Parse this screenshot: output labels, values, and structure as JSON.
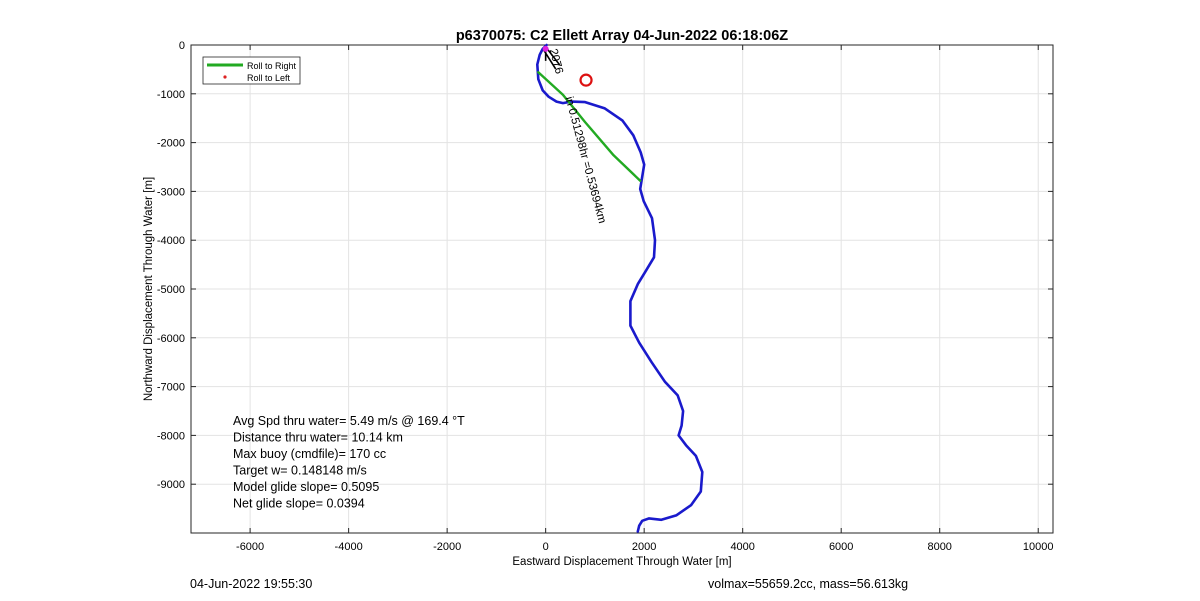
{
  "chart_data": {
    "type": "line",
    "title": "p6370075: C2 Ellett Array 04-Jun-2022 06:18:06Z",
    "xlabel": "Eastward Displacement Through Water [m]",
    "ylabel": "Northward Displacement Through Water [m]",
    "xlim": [
      -7200,
      10300
    ],
    "ylim": [
      -10000,
      0
    ],
    "xticks": [
      -6000,
      -4000,
      -2000,
      0,
      2000,
      4000,
      6000,
      8000,
      10000
    ],
    "yticks": [
      0,
      -1000,
      -2000,
      -3000,
      -4000,
      -5000,
      -6000,
      -7000,
      -8000,
      -9000
    ],
    "xtick_labels": [
      "-6000",
      "-4000",
      "-2000",
      "0",
      "2000",
      "4000",
      "6000",
      "8000",
      "10000"
    ],
    "ytick_labels": [
      "0",
      "-1000",
      "-2000",
      "-3000",
      "-4000",
      "-5000",
      "-6000",
      "-7000",
      "-8000",
      "-9000"
    ],
    "grid": true,
    "legend": {
      "placement": "top-left",
      "entries": [
        {
          "label": "Roll to Right",
          "color": "#22aa22",
          "style": "line"
        },
        {
          "label": "Roll to Left",
          "color": "#dd2222",
          "style": "dot"
        }
      ]
    },
    "series": [
      {
        "color": "#1a1acc",
        "x": [
          1870,
          1900,
          1960,
          2100,
          2350,
          2650,
          2950,
          3150,
          3180,
          3050,
          2850,
          2700,
          2760,
          2790,
          2680,
          2420,
          2150,
          1900,
          1720,
          1720,
          1870,
          2020,
          2200,
          2220,
          2160,
          1990,
          1920,
          1960,
          2000,
          1930,
          1780,
          1560,
          1200,
          800,
          520,
          350,
          220,
          60,
          -60,
          -150,
          -170,
          -120,
          -60,
          20
        ],
        "y": [
          -9970,
          -9850,
          -9750,
          -9700,
          -9730,
          -9640,
          -9430,
          -9150,
          -8750,
          -8420,
          -8200,
          -8000,
          -7800,
          -7500,
          -7180,
          -6900,
          -6500,
          -6100,
          -5750,
          -5250,
          -4900,
          -4650,
          -4350,
          -4000,
          -3550,
          -3200,
          -2950,
          -2700,
          -2450,
          -2200,
          -1850,
          -1550,
          -1300,
          -1170,
          -1160,
          -1190,
          -1160,
          -1060,
          -930,
          -700,
          -400,
          -200,
          -80,
          0
        ]
      },
      {
        "color": "#22aa22",
        "x": [
          -150,
          350,
          800,
          1380,
          1920
        ],
        "y": [
          -560,
          -1020,
          -1580,
          -2260,
          -2780
        ]
      }
    ],
    "markers": [
      {
        "type": "red-circle",
        "x": 820,
        "y": -720
      },
      {
        "type": "magenta-dot",
        "x": 0,
        "y": -80
      }
    ],
    "annotations": [
      {
        "text": "2076",
        "x": 80,
        "y": -100,
        "rotation": 75
      },
      {
        "text": "in 0.51298hr =0.53694km",
        "x": 400,
        "y": -1080,
        "rotation": 75
      }
    ],
    "stats": [
      "Avg Spd thru water=  5.49 m/s @ 169.4 °T",
      "Distance thru water= 10.14 km",
      "Max buoy (cmdfile)= 170 cc",
      "Target w= 0.148148 m/s",
      "Model glide slope= 0.5095",
      "Net glide slope= 0.0394"
    ]
  },
  "footer": {
    "left": "04-Jun-2022 19:55:30",
    "right": "volmax=55659.2cc, mass=56.613kg"
  }
}
